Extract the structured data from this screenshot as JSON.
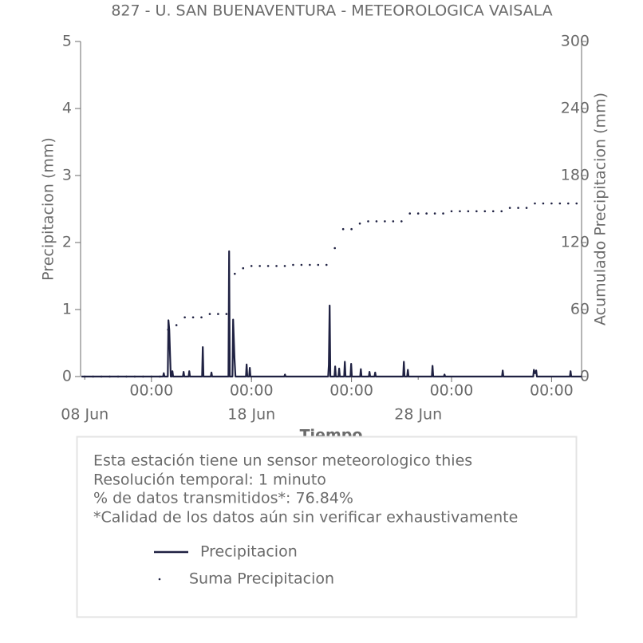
{
  "chart_data": {
    "type": "line",
    "title": "827 - U. SAN BUENAVENTURA - METEOROLOGICA VAISALA",
    "xlabel": "Tiempo",
    "ylabel": "Precipitacion (mm)",
    "y2label": "Acumulado Precipitacion (mm)",
    "xlim": [
      -0.25,
      29.8
    ],
    "xticks": [
      {
        "value": 4,
        "label": "00:00"
      },
      {
        "value": 10,
        "label": "00:00"
      },
      {
        "value": 16,
        "label": "00:00"
      },
      {
        "value": 22,
        "label": "00:00"
      },
      {
        "value": 28,
        "label": "00:00"
      }
    ],
    "date_labels": [
      {
        "value": 0,
        "label": "08 Jun"
      },
      {
        "value": 10,
        "label": "18 Jun"
      },
      {
        "value": 20,
        "label": "28 Jun"
      }
    ],
    "ylim": [
      0,
      5
    ],
    "yticks": [
      0,
      1,
      2,
      3,
      4,
      5
    ],
    "y2lim": [
      0,
      300
    ],
    "y2ticks": [
      0,
      60,
      120,
      180,
      240,
      300
    ],
    "series": [
      {
        "name": "Precipitacion",
        "color": "#1f2142",
        "style": "line",
        "x": [
          -0.2,
          4.7,
          4.74,
          4.78,
          4.98,
          5.02,
          5.07,
          5.12,
          5.16,
          5.22,
          5.26,
          5.3,
          5.89,
          5.93,
          5.97,
          6.23,
          6.27,
          6.31,
          7.04,
          7.08,
          7.12,
          7.56,
          7.6,
          7.64,
          8.62,
          8.66,
          8.7,
          8.86,
          8.9,
          8.98,
          9.04,
          9.67,
          9.71,
          9.75,
          9.86,
          9.9,
          9.94,
          11.97,
          12.01,
          12.05,
          14.6,
          14.64,
          14.69,
          14.73,
          14.98,
          15.02,
          15.06,
          15.22,
          15.26,
          15.3,
          15.56,
          15.6,
          15.64,
          15.94,
          15.98,
          16.02,
          16.52,
          16.56,
          16.6,
          17.04,
          17.08,
          17.12,
          17.38,
          17.42,
          17.46,
          19.1,
          19.14,
          19.18,
          19.34,
          19.38,
          19.42,
          20.82,
          20.86,
          20.9,
          21.54,
          21.58,
          21.62,
          25.03,
          25.07,
          25.11,
          26.9,
          26.94,
          27.01,
          27.08,
          27.12,
          29.1,
          29.14,
          29.18,
          29.8
        ],
        "values": [
          0,
          0,
          0.05,
          0,
          0,
          0.84,
          0.7,
          0.3,
          0,
          0,
          0.08,
          0,
          0,
          0.07,
          0,
          0,
          0.08,
          0,
          0,
          0.44,
          0,
          0,
          0.06,
          0,
          0,
          1.87,
          0,
          0,
          0.85,
          0.28,
          0,
          0,
          0.18,
          0,
          0,
          0.13,
          0,
          0,
          0.03,
          0,
          0,
          0.17,
          1.06,
          0,
          0,
          0.15,
          0,
          0,
          0.12,
          0,
          0,
          0.22,
          0,
          0,
          0.19,
          0,
          0,
          0.11,
          0,
          0,
          0.07,
          0,
          0,
          0.06,
          0,
          0,
          0.22,
          0,
          0,
          0.1,
          0,
          0,
          0.16,
          0,
          0,
          0.03,
          0,
          0,
          0.09,
          0,
          0,
          0.1,
          0.05,
          0.09,
          0,
          0,
          0.08,
          0,
          0
        ]
      },
      {
        "name": "Suma Precipitacion",
        "color": "#1f2142",
        "style": "dots",
        "axis": "y2",
        "x": [
          0,
          0.5,
          1,
          1.5,
          2,
          2.5,
          3,
          3.5,
          4,
          4.5,
          5,
          5.5,
          6,
          6.5,
          7,
          7.5,
          8,
          8.5,
          9,
          9.5,
          10,
          10.5,
          11,
          11.5,
          12,
          12.5,
          13,
          13.5,
          14,
          14.5,
          15,
          15.5,
          16,
          16.5,
          17,
          17.5,
          18,
          18.5,
          19,
          19.5,
          20,
          20.5,
          21,
          21.5,
          22,
          22.5,
          23,
          23.5,
          24,
          24.5,
          25,
          25.5,
          26,
          26.5,
          27,
          27.5,
          28,
          28.5,
          29,
          29.5
        ],
        "values": [
          0,
          0,
          0,
          0,
          0,
          0,
          0,
          0,
          0,
          0,
          42,
          46,
          53,
          53,
          53,
          56,
          56,
          56,
          92,
          97,
          99,
          99,
          99,
          99,
          99,
          100,
          100,
          100,
          100,
          100,
          115,
          132,
          132,
          137,
          139,
          139,
          139,
          139,
          139,
          146,
          146,
          146,
          146,
          146,
          148,
          148,
          148,
          148,
          148,
          148,
          148,
          151,
          151,
          151,
          155,
          155,
          155,
          155,
          155,
          155
        ]
      }
    ]
  },
  "info": [
    "Esta estación tiene un sensor meteorologico thies",
    "Resolución temporal: 1 minuto",
    "% de datos transmitidos*: 76.84%",
    "*Calidad de los datos aún sin verificar exhaustivamente"
  ]
}
